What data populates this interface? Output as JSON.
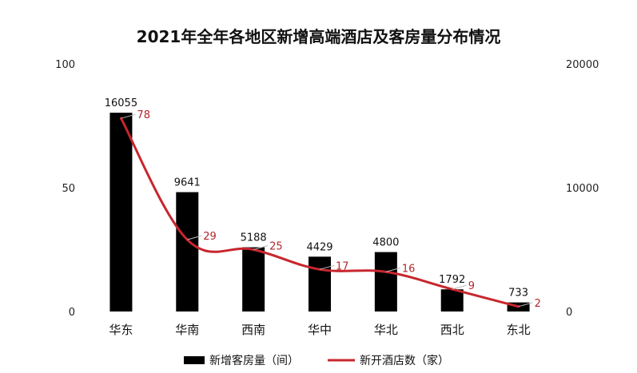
{
  "chart_data": {
    "type": "bar",
    "title": "2021年全年各地区新增高端酒店及客房量分布情况",
    "categories": [
      "华东",
      "华南",
      "西南",
      "华中",
      "华北",
      "西北",
      "东北"
    ],
    "series": [
      {
        "name": "新增客房量（间）",
        "type": "bar",
        "axis": "right",
        "color": "#000000",
        "values": [
          16055,
          9641,
          5188,
          4429,
          4800,
          1792,
          733
        ]
      },
      {
        "name": "新开酒店数（家）",
        "type": "line",
        "axis": "left",
        "color": "#c8262e",
        "values": [
          78,
          29,
          25,
          17,
          16,
          9,
          2
        ]
      }
    ],
    "y_left": {
      "ticks": [
        "0",
        "50",
        "100"
      ],
      "range": [
        0,
        100
      ]
    },
    "y_right": {
      "ticks": [
        "0",
        "10000",
        "20000"
      ],
      "range": [
        0,
        20000
      ]
    },
    "legend_position": "bottom",
    "grid": false
  }
}
